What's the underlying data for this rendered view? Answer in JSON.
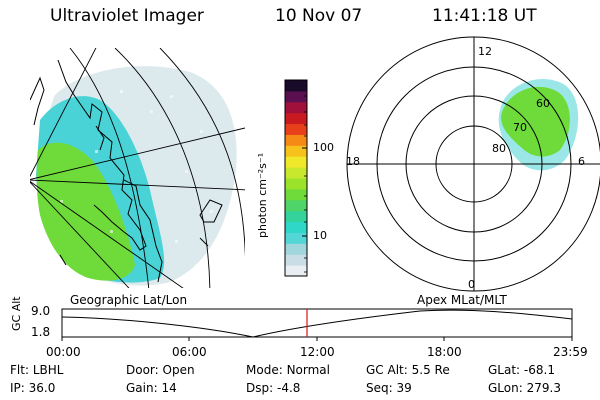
{
  "header": {
    "instrument": "Ultraviolet Imager",
    "date": "10 Nov 07",
    "time": "11:41:18 UT"
  },
  "colorbar": {
    "tick_labels": [
      "100",
      "10"
    ],
    "units_label": "photon cm⁻²s⁻¹",
    "colors": [
      "#e8eef2",
      "#c8dde5",
      "#9fd7dc",
      "#55d6d6",
      "#2ed7c7",
      "#34d39c",
      "#4fd46a",
      "#6fdb3a",
      "#9be22a",
      "#c8e82e",
      "#f0e82a",
      "#f7c21c",
      "#f58b16",
      "#e8401a",
      "#c91a22",
      "#a0103a",
      "#5a1050",
      "#1a0a2a"
    ]
  },
  "panels": {
    "left_label": "Geographic Lat/Lon",
    "right_label": "Apex MLat/MLT",
    "polar": {
      "mlt_labels": [
        "12",
        "18",
        "6",
        "0"
      ],
      "mlat_labels": [
        "60",
        "70",
        "80"
      ]
    }
  },
  "altitude_plot": {
    "ylabel": "GC Alt",
    "y_ticks": [
      "9.0",
      "1.8"
    ],
    "x_ticks": [
      "00:00",
      "06:00",
      "12:00",
      "18:00",
      "23:59"
    ],
    "marker_time": "11:41"
  },
  "status": {
    "row1": [
      {
        "key": "Flt:",
        "value": "LBHL"
      },
      {
        "key": "Door:",
        "value": "Open"
      },
      {
        "key": "Mode:",
        "value": "Normal"
      },
      {
        "key": "GC Alt:",
        "value": "5.5 Re"
      },
      {
        "key": "GLat:",
        "value": "-68.1"
      }
    ],
    "row2": [
      {
        "key": "IP:",
        "value": "36.0"
      },
      {
        "key": "Gain:",
        "value": "14"
      },
      {
        "key": "Dsp:",
        "value": "-4.8"
      },
      {
        "key": "Seq:",
        "value": "39"
      },
      {
        "key": "GLon:",
        "value": "279.3"
      }
    ]
  }
}
